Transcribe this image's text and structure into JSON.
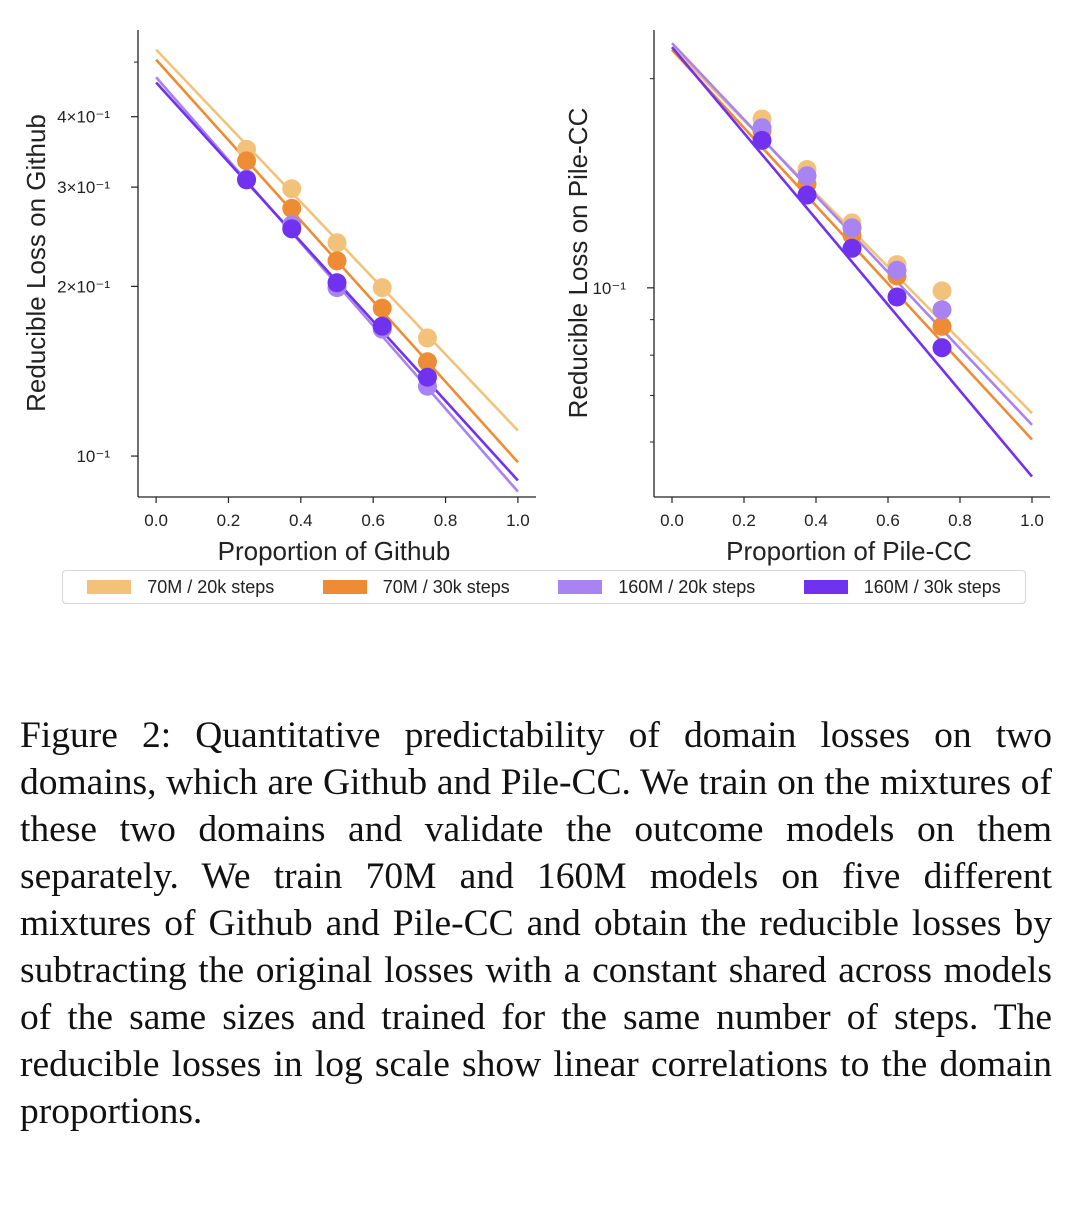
{
  "figure": {
    "legend": [
      {
        "label": "70M / 20k steps",
        "color": "#f3c27a"
      },
      {
        "label": "70M / 30k steps",
        "color": "#ee8c35"
      },
      {
        "label": "160M / 20k steps",
        "color": "#a883f2"
      },
      {
        "label": "160M / 30k steps",
        "color": "#7032ee"
      }
    ],
    "caption": "Figure 2: Quantitative predictability of domain losses on two domains, which are Github and Pile-CC. We train on the mixtures of these two domains and validate the outcome models on them separately. We train 70M and 160M models on five different mixtures of Github and Pile-CC and obtain the reducible losses by subtracting the original losses with a constant shared across models of the same sizes and trained for the same number of steps. The reducible losses in log scale show linear correlations to the domain proportions."
  },
  "chart_data": [
    {
      "type": "scatter",
      "yscale": "log",
      "xlabel": "Proportion of Github",
      "ylabel": "Reducible Loss on Github",
      "xlim": [
        -0.05,
        1.05
      ],
      "ylim": [
        0.0846,
        0.57
      ],
      "xticks": [
        0.0,
        0.2,
        0.4,
        0.6,
        0.8,
        1.0
      ],
      "xtick_labels": [
        "0.0",
        "0.2",
        "0.4",
        "0.6",
        "0.8",
        "1.0"
      ],
      "yticks_major": [
        0.1,
        0.2,
        0.3,
        0.4
      ],
      "ytick_labels": [
        "10⁻¹",
        "2×10⁻¹",
        "3×10⁻¹",
        "4×10⁻¹"
      ],
      "yticks_minor": [
        0.5
      ],
      "x": [
        0.25,
        0.375,
        0.5,
        0.625,
        0.75
      ],
      "series": [
        {
          "name": "70M / 20k steps",
          "color": "#f3c27a",
          "values": [
            0.35,
            0.298,
            0.239,
            0.199,
            0.162
          ],
          "fit": [
            0.526,
            0.111
          ]
        },
        {
          "name": "70M / 30k steps",
          "color": "#ee8c35",
          "values": [
            0.334,
            0.275,
            0.222,
            0.183,
            0.147
          ],
          "fit": [
            0.505,
            0.0975
          ]
        },
        {
          "name": "160M / 20k steps",
          "color": "#a883f2",
          "values": [
            0.31,
            0.257,
            0.199,
            0.168,
            0.133
          ],
          "fit": [
            0.47,
            0.0865
          ]
        },
        {
          "name": "160M / 30k steps",
          "color": "#7032ee",
          "values": [
            0.309,
            0.253,
            0.203,
            0.17,
            0.138
          ],
          "fit": [
            0.46,
            0.0905
          ]
        }
      ]
    },
    {
      "type": "scatter",
      "yscale": "log",
      "xlabel": "Proportion of Pile-CC",
      "ylabel": "Reducible Loss on Pile-CC",
      "xlim": [
        -0.05,
        1.05
      ],
      "ylim": [
        0.05,
        0.235
      ],
      "xticks": [
        0.0,
        0.2,
        0.4,
        0.6,
        0.8,
        1.0
      ],
      "xtick_labels": [
        "0.0",
        "0.2",
        "0.4",
        "0.6",
        "0.8",
        "1.0"
      ],
      "yticks_major": [
        0.1
      ],
      "ytick_labels": [
        "10⁻¹"
      ],
      "yticks_minor": [
        0.06,
        0.07,
        0.08,
        0.09,
        0.2
      ],
      "x": [
        0.25,
        0.375,
        0.5,
        0.625,
        0.75
      ],
      "series": [
        {
          "name": "70M / 20k steps",
          "color": "#f3c27a",
          "values": [
            0.175,
            0.148,
            0.124,
            0.108,
            0.099
          ],
          "fit": [
            0.222,
            0.066
          ]
        },
        {
          "name": "70M / 30k steps",
          "color": "#ee8c35",
          "values": [
            0.168,
            0.141,
            0.119,
            0.104,
            0.088
          ],
          "fit": [
            0.22,
            0.0605
          ]
        },
        {
          "name": "160M / 20k steps",
          "color": "#a883f2",
          "values": [
            0.17,
            0.145,
            0.122,
            0.106,
            0.093
          ],
          "fit": [
            0.225,
            0.0635
          ]
        },
        {
          "name": "160M / 30k steps",
          "color": "#7032ee",
          "values": [
            0.163,
            0.136,
            0.114,
            0.097,
            0.082
          ],
          "fit": [
            0.222,
            0.0535
          ]
        }
      ]
    }
  ]
}
